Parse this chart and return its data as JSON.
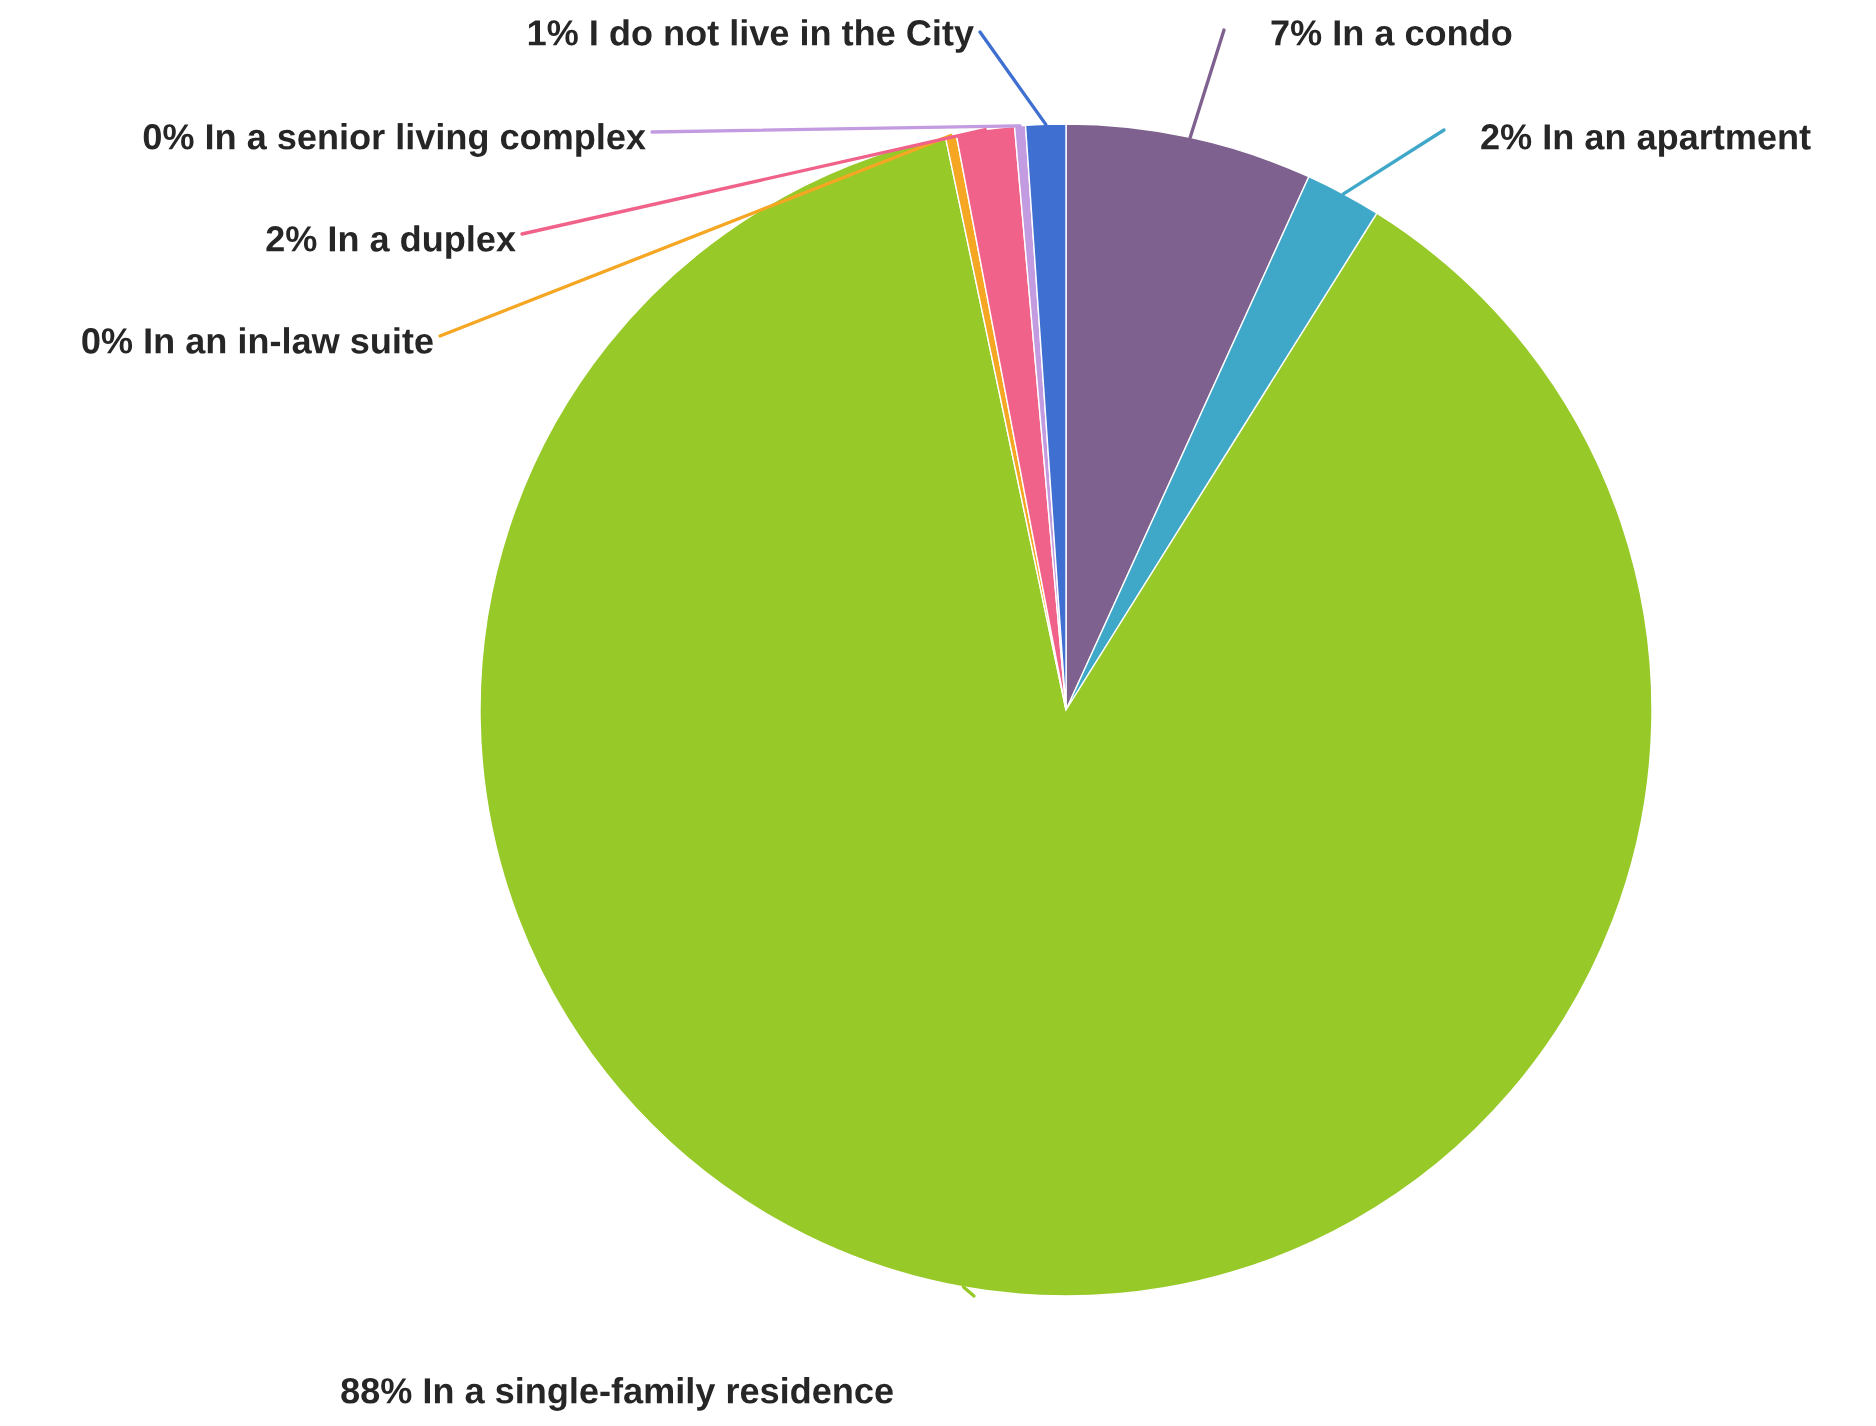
{
  "chart_data": {
    "type": "pie",
    "categories": [
      "In a condo",
      "In an apartment",
      "In a single-family residence",
      "In an in-law suite",
      "In a duplex",
      "In a senior living complex",
      "I do not live in the City"
    ],
    "values": [
      6.8,
      2.1,
      87.8,
      0.3,
      1.6,
      0.3,
      1.1
    ],
    "value_labels": [
      "7%",
      "2%",
      "88%",
      "0%",
      "2%",
      "0%",
      "1%"
    ],
    "colors": [
      "#7f6190",
      "#3fa7c7",
      "#97c928",
      "#f5a623",
      "#f06289",
      "#c39be0",
      "#3f6fd0"
    ],
    "legend": false
  }
}
